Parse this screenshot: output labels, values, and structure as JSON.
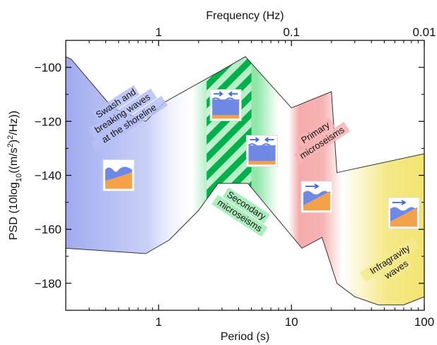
{
  "chart_data": {
    "type": "area",
    "xlabel": "Period (s)",
    "ylabel_main": "PSD (10log",
    "ylabel_sub": "10",
    "ylabel_rest": "((m/s",
    "ylabel_sup": "2",
    "ylabel_rest2": ")",
    "ylabel_sup2": "2",
    "ylabel_end": "/Hz))",
    "top_axis_label": "Frequency (Hz)",
    "x_scale": "log",
    "xlim": [
      0.2,
      100
    ],
    "ylim": [
      -190,
      -90
    ],
    "x_ticks": [
      {
        "value": 1,
        "label": "1"
      },
      {
        "value": 10,
        "label": "10"
      },
      {
        "value": 100,
        "label": "100"
      }
    ],
    "top_ticks": [
      {
        "value": 1,
        "label": "1"
      },
      {
        "value": 10,
        "label": "0.1"
      },
      {
        "value": 100,
        "label": "0.01"
      }
    ],
    "y_ticks": [
      {
        "value": -100,
        "label": "−100"
      },
      {
        "value": -120,
        "label": "−120"
      },
      {
        "value": -140,
        "label": "−140"
      },
      {
        "value": -160,
        "label": "−160"
      },
      {
        "value": -180,
        "label": "−180"
      }
    ],
    "upper_envelope": [
      [
        0.2,
        -96
      ],
      [
        0.22,
        -97
      ],
      [
        0.45,
        -115
      ],
      [
        0.8,
        -120
      ],
      [
        1.1,
        -113
      ],
      [
        3.0,
        -101
      ],
      [
        4.5,
        -96
      ],
      [
        10,
        -115
      ],
      [
        20,
        -109
      ],
      [
        22,
        -139
      ],
      [
        100,
        -132
      ]
    ],
    "lower_envelope": [
      [
        0.2,
        -167
      ],
      [
        0.8,
        -169
      ],
      [
        1.2,
        -164
      ],
      [
        2.0,
        -153
      ],
      [
        2.8,
        -143
      ],
      [
        4.7,
        -143
      ],
      [
        12,
        -167
      ],
      [
        17,
        -163
      ],
      [
        22,
        -180
      ],
      [
        30,
        -185
      ],
      [
        45,
        -188
      ],
      [
        70,
        -188
      ],
      [
        100,
        -185
      ]
    ],
    "bands": [
      {
        "name": "Swash and breaking waves at the shoreline",
        "x_range": [
          0.2,
          2.0
        ],
        "color": "#9aa6ee",
        "lines": [
          "Swash and",
          "breaking waves",
          "at the shoreline"
        ]
      },
      {
        "name": "Secondary microseisms",
        "x_range": [
          1.8,
          8.0
        ],
        "color": "#7ee29a",
        "lines": [
          "Secondary",
          "microseisms"
        ]
      },
      {
        "name": "Primary microseisms",
        "x_range": [
          9.5,
          24
        ],
        "color": "#f4a1a1",
        "lines": [
          "Primary",
          "microseisms"
        ]
      },
      {
        "name": "Infragravity waves",
        "x_range": [
          24,
          100
        ],
        "color": "#f2e36a",
        "lines": [
          "Infragravity",
          "waves"
        ]
      }
    ],
    "hatch_region": {
      "x_range": [
        2.3,
        5.0
      ],
      "color": "#00b04a"
    },
    "icons": [
      {
        "name": "breaking-wave-icon",
        "x": 0.5,
        "y": -140,
        "kind": "breaking"
      },
      {
        "name": "opposing-waves-icon-1",
        "x": 3.2,
        "y": -114,
        "kind": "opposing"
      },
      {
        "name": "opposing-waves-icon-2",
        "x": 6.0,
        "y": -131,
        "kind": "opposing"
      },
      {
        "name": "primary-wave-icon",
        "x": 15.5,
        "y": -148,
        "kind": "single"
      },
      {
        "name": "infragravity-wave-icon",
        "x": 70,
        "y": -154,
        "kind": "single"
      }
    ]
  }
}
